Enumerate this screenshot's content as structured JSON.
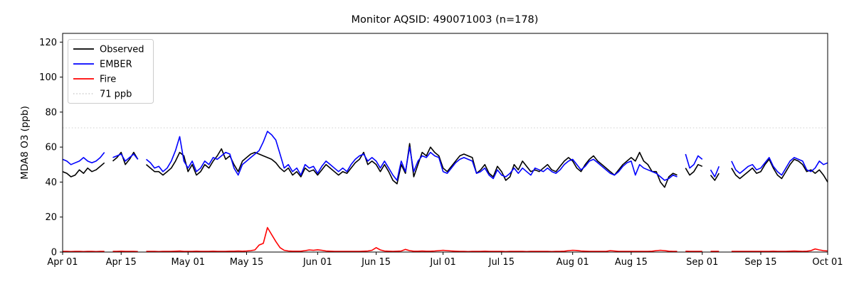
{
  "chart_data": {
    "type": "line",
    "title": "Monitor AQSID: 490071003 (n=178)",
    "xlabel": "",
    "ylabel": "MDA8 O3 (ppb)",
    "ylim": [
      0,
      125
    ],
    "yticks": [
      0,
      20,
      40,
      60,
      80,
      100,
      120
    ],
    "x_range_days": [
      0,
      183
    ],
    "x_tick_days": [
      0,
      14,
      30,
      44,
      61,
      75,
      91,
      105,
      122,
      136,
      153,
      167,
      183
    ],
    "x_tick_labels": [
      "Apr 01",
      "Apr 15",
      "May 01",
      "May 15",
      "Jun 01",
      "Jun 15",
      "Jul 01",
      "Jul 15",
      "Aug 01",
      "Aug 15",
      "Sep 01",
      "Sep 15",
      "Oct 01"
    ],
    "grid": false,
    "background": "#ffffff",
    "threshold": {
      "label": "71 ppb",
      "value": 71,
      "color": "#d3d3d3",
      "style": "dotted"
    },
    "legend": {
      "position": "upper left",
      "entries": [
        "Observed",
        "EMBER",
        "Fire",
        "71 ppb"
      ]
    },
    "series": [
      {
        "name": "Observed",
        "color": "#000000",
        "values": [
          46,
          45,
          43,
          44,
          47,
          45,
          48,
          46,
          47,
          49,
          51,
          null,
          52,
          54,
          57,
          50,
          53,
          57,
          53,
          null,
          50,
          48,
          46,
          46,
          44,
          46,
          48,
          52,
          57,
          55,
          46,
          50,
          44,
          46,
          50,
          48,
          52,
          55,
          59,
          53,
          55,
          50,
          46,
          52,
          54,
          56,
          57,
          56,
          55,
          54,
          53,
          51,
          48,
          46,
          48,
          44,
          46,
          43,
          48,
          46,
          47,
          44,
          47,
          50,
          48,
          46,
          44,
          46,
          45,
          48,
          51,
          53,
          57,
          50,
          52,
          50,
          46,
          50,
          46,
          41,
          39,
          50,
          45,
          62,
          43,
          50,
          57,
          55,
          60,
          57,
          55,
          48,
          46,
          49,
          52,
          55,
          56,
          55,
          54,
          45,
          47,
          50,
          45,
          43,
          49,
          46,
          41,
          43,
          50,
          47,
          52,
          49,
          46,
          47,
          46,
          48,
          50,
          47,
          46,
          49,
          52,
          54,
          52,
          48,
          46,
          50,
          53,
          55,
          52,
          50,
          48,
          46,
          44,
          47,
          50,
          52,
          54,
          52,
          57,
          52,
          50,
          46,
          46,
          40,
          37,
          43,
          45,
          44,
          null,
          48,
          44,
          46,
          50,
          49,
          null,
          44,
          41,
          45,
          null,
          null,
          48,
          44,
          42,
          44,
          46,
          48,
          45,
          46,
          50,
          53,
          48,
          44,
          42,
          46,
          50,
          53,
          52,
          50,
          46,
          47,
          45,
          47,
          44,
          40
        ]
      },
      {
        "name": "EMBER",
        "color": "#0000ff",
        "values": [
          53,
          52,
          50,
          51,
          52,
          54,
          52,
          51,
          52,
          54,
          57,
          null,
          54,
          55,
          56,
          52,
          54,
          56,
          53,
          null,
          53,
          51,
          48,
          49,
          46,
          48,
          52,
          58,
          66,
          52,
          48,
          52,
          46,
          48,
          52,
          50,
          54,
          53,
          55,
          57,
          56,
          48,
          44,
          50,
          52,
          54,
          56,
          58,
          63,
          69,
          67,
          64,
          56,
          48,
          50,
          46,
          48,
          44,
          50,
          48,
          49,
          45,
          49,
          52,
          50,
          48,
          46,
          48,
          46,
          50,
          53,
          55,
          56,
          52,
          54,
          52,
          48,
          52,
          48,
          44,
          41,
          52,
          46,
          60,
          46,
          52,
          55,
          54,
          57,
          55,
          54,
          46,
          45,
          48,
          51,
          53,
          54,
          53,
          52,
          45,
          46,
          48,
          44,
          42,
          47,
          44,
          43,
          45,
          48,
          45,
          48,
          46,
          44,
          48,
          47,
          46,
          48,
          46,
          45,
          47,
          50,
          52,
          53,
          50,
          47,
          49,
          52,
          53,
          51,
          49,
          47,
          45,
          44,
          46,
          49,
          51,
          52,
          44,
          50,
          48,
          47,
          46,
          45,
          43,
          41,
          42,
          44,
          43,
          null,
          56,
          48,
          50,
          55,
          53,
          null,
          47,
          43,
          49,
          null,
          null,
          52,
          47,
          45,
          47,
          49,
          50,
          47,
          48,
          51,
          54,
          49,
          46,
          44,
          48,
          52,
          54,
          53,
          52,
          47,
          46,
          48,
          52,
          50,
          51
        ]
      },
      {
        "name": "Fire",
        "color": "#ff0000",
        "values": [
          0.4,
          0.4,
          0.3,
          0.4,
          0.4,
          0.3,
          0.4,
          0.4,
          0.3,
          0.4,
          0.4,
          null,
          0.4,
          0.4,
          0.5,
          0.4,
          0.4,
          0.4,
          0.3,
          null,
          0.4,
          0.4,
          0.4,
          0.3,
          0.4,
          0.4,
          0.4,
          0.5,
          0.6,
          0.4,
          0.4,
          0.4,
          0.5,
          0.4,
          0.4,
          0.4,
          0.5,
          0.4,
          0.4,
          0.4,
          0.5,
          0.5,
          0.6,
          0.5,
          0.6,
          0.8,
          1.2,
          4,
          5,
          14,
          10,
          6,
          2.5,
          1,
          0.6,
          0.5,
          0.5,
          0.5,
          0.8,
          1.2,
          1.0,
          1.3,
          1.0,
          0.6,
          0.5,
          0.4,
          0.4,
          0.4,
          0.4,
          0.4,
          0.4,
          0.4,
          0.5,
          0.6,
          1.0,
          2.5,
          1.2,
          0.6,
          0.5,
          0.4,
          0.5,
          0.6,
          1.5,
          0.8,
          0.5,
          0.5,
          0.6,
          0.5,
          0.5,
          0.6,
          0.8,
          1.0,
          0.8,
          0.6,
          0.5,
          0.4,
          0.4,
          0.3,
          0.4,
          0.4,
          0.4,
          0.5,
          0.4,
          0.4,
          0.4,
          0.4,
          0.3,
          0.4,
          0.4,
          0.4,
          0.4,
          0.3,
          0.4,
          0.4,
          0.4,
          0.4,
          0.4,
          0.3,
          0.4,
          0.4,
          0.5,
          0.8,
          1.0,
          0.9,
          0.6,
          0.5,
          0.4,
          0.4,
          0.4,
          0.4,
          0.4,
          0.8,
          0.6,
          0.4,
          0.4,
          0.4,
          0.4,
          0.4,
          0.4,
          0.4,
          0.4,
          0.5,
          0.8,
          1.0,
          0.8,
          0.5,
          0.4,
          0.4,
          null,
          0.5,
          0.4,
          0.4,
          0.4,
          0.4,
          null,
          0.4,
          0.4,
          0.4,
          null,
          null,
          0.4,
          0.4,
          0.4,
          0.4,
          0.4,
          0.4,
          0.4,
          0.4,
          0.4,
          0.4,
          0.5,
          0.4,
          0.4,
          0.4,
          0.5,
          0.6,
          0.5,
          0.4,
          0.5,
          0.8,
          1.8,
          1.2,
          0.8,
          0.6
        ]
      }
    ]
  }
}
